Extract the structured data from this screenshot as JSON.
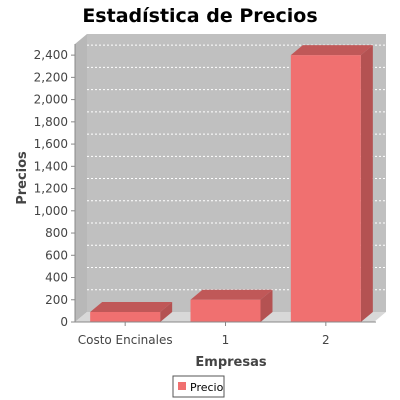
{
  "chart_data": {
    "type": "bar",
    "title": "Estadística de Precios",
    "xlabel": "Empresas",
    "ylabel": "Precios",
    "categories": [
      "Costo Encinales",
      "1",
      "2"
    ],
    "series": [
      {
        "name": "Precio",
        "values": [
          90,
          200,
          2400
        ]
      }
    ],
    "ylim": [
      0,
      2500
    ],
    "yticks": [
      0,
      200,
      400,
      600,
      800,
      1000,
      1200,
      1400,
      1600,
      1800,
      2000,
      2200,
      2400
    ],
    "ytick_labels": [
      "0",
      "200",
      "400",
      "600",
      "800",
      "1,000",
      "1,200",
      "1,400",
      "1,600",
      "1,800",
      "2,000",
      "2,200",
      "2,400"
    ],
    "grid": true,
    "legend_position": "bottom-center",
    "style": "3d"
  },
  "colors": {
    "bar_front": "#f07070",
    "bar_top": "#c05858",
    "bar_side": "#b45252",
    "plot_back": "#c0c0c0",
    "plot_floor": "#d8d8d8",
    "plot_side": "#b8b8b8",
    "gridline": "#ffffff"
  }
}
